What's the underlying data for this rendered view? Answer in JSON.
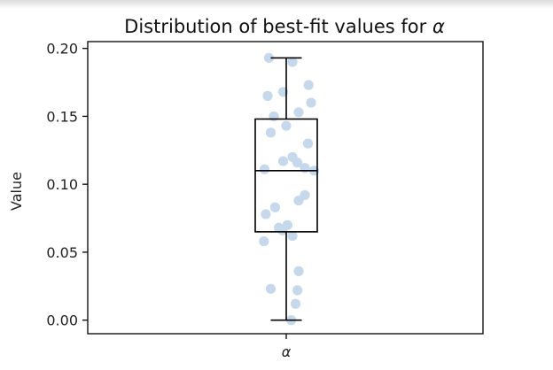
{
  "chart_data": {
    "type": "box",
    "title": "Distribution of best-fit values for",
    "title_symbol": "α",
    "xlabel": "",
    "ylabel": "Value",
    "categories": [
      "α"
    ],
    "ylim": [
      -0.01,
      0.205
    ],
    "yticks": [
      0.0,
      0.05,
      0.1,
      0.15,
      0.2
    ],
    "ytick_labels": [
      "0.00",
      "0.05",
      "0.10",
      "0.15",
      "0.20"
    ],
    "grid": false,
    "box": {
      "whisker_low": 0.0,
      "q1": 0.065,
      "median": 0.11,
      "q3": 0.148,
      "whisker_high": 0.193
    },
    "points": [
      0.193,
      0.19,
      0.173,
      0.168,
      0.165,
      0.16,
      0.153,
      0.15,
      0.143,
      0.138,
      0.13,
      0.12,
      0.117,
      0.116,
      0.112,
      0.111,
      0.11,
      0.092,
      0.088,
      0.083,
      0.078,
      0.07,
      0.068,
      0.066,
      0.062,
      0.058,
      0.036,
      0.023,
      0.022,
      0.012,
      0.0
    ],
    "colors": {
      "points": "#c6d8ec",
      "box": "#000000"
    }
  }
}
